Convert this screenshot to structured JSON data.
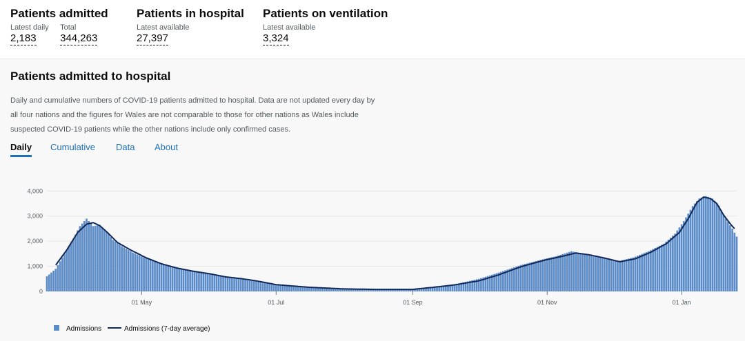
{
  "headlines": [
    {
      "title": "Patients admitted",
      "metrics": [
        {
          "label": "Latest daily",
          "value": "2,183"
        },
        {
          "label": "Total",
          "value": "344,263"
        }
      ]
    },
    {
      "title": "Patients in hospital",
      "metrics": [
        {
          "label": "Latest available",
          "value": "27,397"
        }
      ]
    },
    {
      "title": "Patients on ventilation",
      "metrics": [
        {
          "label": "Latest available",
          "value": "3,324"
        }
      ]
    }
  ],
  "card": {
    "title": "Patients admitted to hospital",
    "description": "Daily and cumulative numbers of COVID-19 patients admitted to hospital. Data are not updated every day by all four nations and the figures for Wales are not comparable to those for other nations as Wales include suspected COVID-19 patients while the other nations include only confirmed cases.",
    "tabs": [
      "Daily",
      "Cumulative",
      "Data",
      "About"
    ],
    "active_tab": "Daily"
  },
  "colors": {
    "bar": "#5b8cc8",
    "line": "#12285a",
    "active_tab": "#1d70b8"
  },
  "chart_data": {
    "type": "bar",
    "x_range": [
      "2020-03-19",
      "2021-01-26"
    ],
    "ylim": [
      0,
      4200
    ],
    "y_ticks": [
      "0",
      "1,000",
      "2,000",
      "3,000",
      "4,000"
    ],
    "x_ticks": [
      {
        "date": "2020-05-01",
        "label": "01 May"
      },
      {
        "date": "2020-07-01",
        "label": "01 Jul"
      },
      {
        "date": "2020-09-01",
        "label": "01 Sep"
      },
      {
        "date": "2020-11-01",
        "label": "01 Nov"
      },
      {
        "date": "2021-01-01",
        "label": "01 Jan"
      }
    ],
    "series": [
      {
        "name": "Admissions",
        "type": "bar"
      },
      {
        "name": "Admissions (7-day average)",
        "type": "line"
      }
    ],
    "anchors": [
      [
        "2020-03-19",
        600
      ],
      [
        "2020-03-23",
        900
      ],
      [
        "2020-03-27",
        1500
      ],
      [
        "2020-03-31",
        2100
      ],
      [
        "2020-04-03",
        2600
      ],
      [
        "2020-04-06",
        2900
      ],
      [
        "2020-04-09",
        2600
      ],
      [
        "2020-04-12",
        2650
      ],
      [
        "2020-04-15",
        2400
      ],
      [
        "2020-04-18",
        2050
      ],
      [
        "2020-04-22",
        1800
      ],
      [
        "2020-04-27",
        1550
      ],
      [
        "2020-05-02",
        1350
      ],
      [
        "2020-05-08",
        1180
      ],
      [
        "2020-05-15",
        950
      ],
      [
        "2020-05-22",
        830
      ],
      [
        "2020-05-29",
        720
      ],
      [
        "2020-06-05",
        620
      ],
      [
        "2020-06-12",
        520
      ],
      [
        "2020-06-19",
        430
      ],
      [
        "2020-06-26",
        350
      ],
      [
        "2020-07-03",
        250
      ],
      [
        "2020-07-15",
        180
      ],
      [
        "2020-08-01",
        110
      ],
      [
        "2020-08-15",
        90
      ],
      [
        "2020-09-01",
        100
      ],
      [
        "2020-09-10",
        180
      ],
      [
        "2020-09-20",
        280
      ],
      [
        "2020-10-01",
        500
      ],
      [
        "2020-10-10",
        750
      ],
      [
        "2020-10-20",
        1050
      ],
      [
        "2020-10-31",
        1300
      ],
      [
        "2020-11-05",
        1400
      ],
      [
        "2020-11-12",
        1600
      ],
      [
        "2020-11-20",
        1450
      ],
      [
        "2020-11-28",
        1300
      ],
      [
        "2020-12-03",
        1200
      ],
      [
        "2020-12-10",
        1350
      ],
      [
        "2020-12-17",
        1600
      ],
      [
        "2020-12-24",
        1900
      ],
      [
        "2020-12-29",
        2300
      ],
      [
        "2021-01-02",
        2800
      ],
      [
        "2021-01-06",
        3400
      ],
      [
        "2021-01-09",
        3700
      ],
      [
        "2021-01-12",
        3800
      ],
      [
        "2021-01-15",
        3700
      ],
      [
        "2021-01-18",
        3400
      ],
      [
        "2021-01-21",
        2900
      ],
      [
        "2021-01-24",
        2500
      ],
      [
        "2021-01-26",
        2183
      ]
    ],
    "line_anchors": [
      [
        "2020-03-23",
        1050
      ],
      [
        "2020-03-28",
        1650
      ],
      [
        "2020-04-02",
        2350
      ],
      [
        "2020-04-06",
        2680
      ],
      [
        "2020-04-09",
        2740
      ],
      [
        "2020-04-12",
        2620
      ],
      [
        "2020-04-16",
        2300
      ],
      [
        "2020-04-20",
        1950
      ],
      [
        "2020-04-26",
        1650
      ],
      [
        "2020-05-03",
        1340
      ],
      [
        "2020-05-10",
        1100
      ],
      [
        "2020-05-17",
        930
      ],
      [
        "2020-05-24",
        810
      ],
      [
        "2020-06-01",
        700
      ],
      [
        "2020-06-08",
        580
      ],
      [
        "2020-06-15",
        510
      ],
      [
        "2020-06-22",
        420
      ],
      [
        "2020-07-01",
        270
      ],
      [
        "2020-07-15",
        170
      ],
      [
        "2020-08-01",
        100
      ],
      [
        "2020-08-15",
        80
      ],
      [
        "2020-09-01",
        80
      ],
      [
        "2020-09-10",
        160
      ],
      [
        "2020-09-20",
        260
      ],
      [
        "2020-10-01",
        420
      ],
      [
        "2020-10-10",
        660
      ],
      [
        "2020-10-20",
        980
      ],
      [
        "2020-10-31",
        1250
      ],
      [
        "2020-11-07",
        1380
      ],
      [
        "2020-11-14",
        1530
      ],
      [
        "2020-11-20",
        1460
      ],
      [
        "2020-11-27",
        1330
      ],
      [
        "2020-12-04",
        1180
      ],
      [
        "2020-12-11",
        1300
      ],
      [
        "2020-12-18",
        1560
      ],
      [
        "2020-12-25",
        1900
      ],
      [
        "2020-12-31",
        2350
      ],
      [
        "2021-01-04",
        2900
      ],
      [
        "2021-01-08",
        3550
      ],
      [
        "2021-01-11",
        3760
      ],
      [
        "2021-01-14",
        3700
      ],
      [
        "2021-01-17",
        3500
      ],
      [
        "2021-01-20",
        3050
      ],
      [
        "2021-01-23",
        2700
      ],
      [
        "2021-01-25",
        2500
      ]
    ]
  }
}
